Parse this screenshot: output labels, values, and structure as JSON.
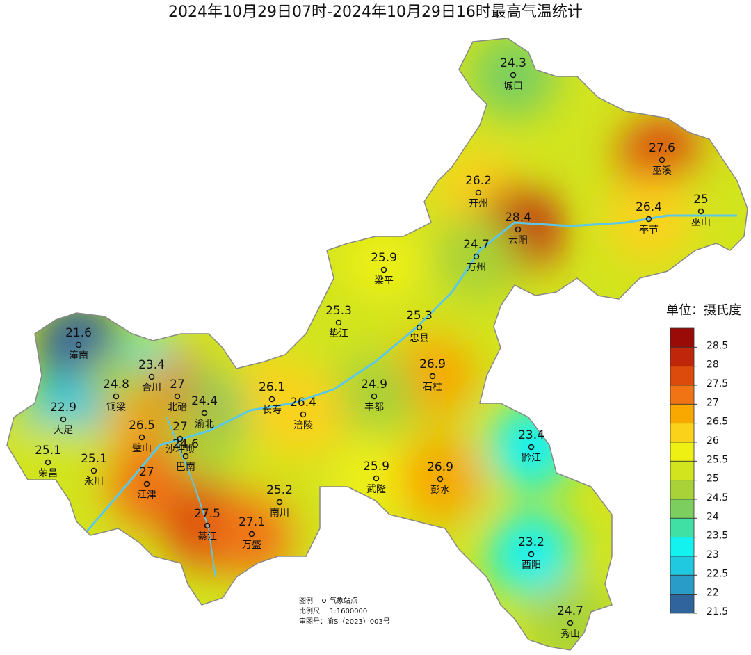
{
  "title": "2024年10月29日07时-2024年10月29日16时最高气温统计",
  "unit": "单位：摄氏度",
  "colorbar": {
    "ticks": [
      28.5,
      28,
      27.5,
      27,
      26.5,
      26,
      25.5,
      25,
      24.5,
      24,
      23.5,
      23,
      22.5,
      22,
      21.5
    ],
    "colors": [
      "#9a0a06",
      "#c0260a",
      "#dc4a0c",
      "#f07414",
      "#f8a800",
      "#fad21a",
      "#eef014",
      "#d2e41e",
      "#a8d238",
      "#7ccf5e",
      "#40e0a4",
      "#14f2f0",
      "#20c8e0",
      "#2a9cc8",
      "#30649c"
    ]
  },
  "stations": [
    {
      "name": "城口",
      "value": 24.3
    },
    {
      "name": "巫溪",
      "value": 27.6
    },
    {
      "name": "开州",
      "value": 26.2
    },
    {
      "name": "巫山",
      "value": 25
    },
    {
      "name": "奉节",
      "value": 26.4
    },
    {
      "name": "云阳",
      "value": 28.4
    },
    {
      "name": "万州",
      "value": 24.7
    },
    {
      "name": "梁平",
      "value": 25.9
    },
    {
      "name": "垫江",
      "value": 25.3
    },
    {
      "name": "忠县",
      "value": 25.3
    },
    {
      "name": "潼南",
      "value": 21.6
    },
    {
      "name": "石柱",
      "value": 26.9
    },
    {
      "name": "合川",
      "value": 23.4
    },
    {
      "name": "北碚",
      "value": 27
    },
    {
      "name": "长寿",
      "value": 26.1
    },
    {
      "name": "铜梁",
      "value": 24.8
    },
    {
      "name": "丰都",
      "value": 24.9
    },
    {
      "name": "渝北",
      "value": 24.4
    },
    {
      "name": "涪陵",
      "value": 26.4
    },
    {
      "name": "大足",
      "value": 22.9
    },
    {
      "name": "璧山",
      "value": 26.5
    },
    {
      "name": "沙坪坝",
      "value": 27
    },
    {
      "name": "黔江",
      "value": 23.4
    },
    {
      "name": "荣昌",
      "value": 25.1
    },
    {
      "name": "永川",
      "value": 25.1
    },
    {
      "name": "巴南",
      "value": 24.6
    },
    {
      "name": "江津",
      "value": 27
    },
    {
      "name": "武隆",
      "value": 25.9
    },
    {
      "name": "彭水",
      "value": 26.9
    },
    {
      "name": "南川",
      "value": 25.2
    },
    {
      "name": "綦江",
      "value": 27.5
    },
    {
      "name": "万盛",
      "value": 27.1
    },
    {
      "name": "酉阳",
      "value": 23.2
    },
    {
      "name": "秀山",
      "value": 24.7
    }
  ],
  "legend": {
    "label": "图例",
    "station": "气象站点",
    "scale_label": "比例尺",
    "scale": "1:1600000",
    "review": "审图号：渝S（2023）003号"
  }
}
